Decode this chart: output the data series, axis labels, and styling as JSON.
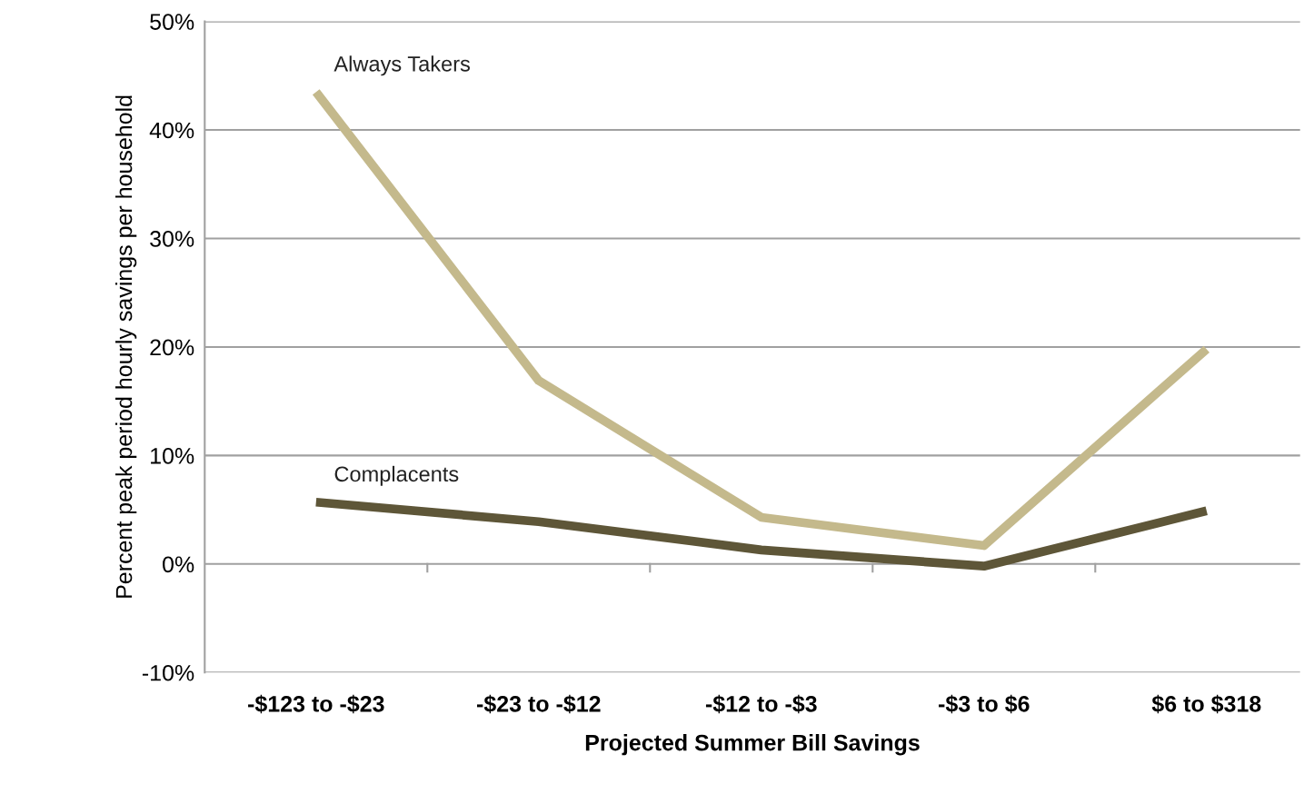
{
  "chart_data": {
    "type": "line",
    "xlabel": "Projected Summer Bill Savings",
    "ylabel": "Percent peak period hourly savings per household",
    "categories": [
      "-$123 to -$23",
      "-$23 to -$12",
      "-$12 to -$3",
      "-$3 to $6",
      "$6 to $318"
    ],
    "series": [
      {
        "name": "Always Takers",
        "color": "#c4b98c",
        "values": [
          43.5,
          16.9,
          4.3,
          1.7,
          19.8
        ]
      },
      {
        "name": "Complacents",
        "color": "#5e5638",
        "values": [
          5.7,
          3.9,
          1.3,
          -0.2,
          4.9
        ]
      }
    ],
    "ylim": [
      -10,
      50
    ],
    "yticks": [
      {
        "value": -10,
        "label": "-10%"
      },
      {
        "value": 0,
        "label": "0%"
      },
      {
        "value": 10,
        "label": "10%"
      },
      {
        "value": 20,
        "label": "20%"
      },
      {
        "value": 30,
        "label": "30%"
      },
      {
        "value": 40,
        "label": "40%"
      },
      {
        "value": 50,
        "label": "50%"
      }
    ],
    "grid": "y",
    "legend": false,
    "marker": "none",
    "line_style": "solid"
  }
}
